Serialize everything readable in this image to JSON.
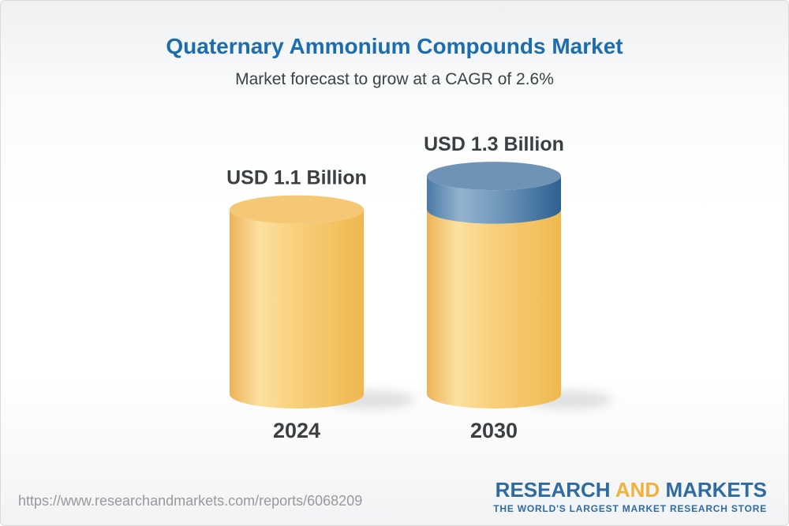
{
  "chart_data": {
    "type": "bar",
    "variant": "3d-cylinder",
    "title": "Quaternary Ammonium Compounds Market",
    "subtitle": "Market forecast to grow at a CAGR of 2.6%",
    "cagr": "2.6%",
    "unit": "USD Billion",
    "categories": [
      "2024",
      "2030"
    ],
    "values": [
      1.1,
      1.3
    ],
    "value_labels": [
      "USD 1.1 Billion",
      "USD 1.3 Billion"
    ],
    "legend": "none",
    "axes": "none",
    "bars": [
      {
        "category": "2024",
        "label": "USD 1.1 Billion",
        "segments": [
          {
            "color": "gold",
            "value": 1.1
          }
        ]
      },
      {
        "category": "2030",
        "label": "USD 1.3 Billion",
        "segments": [
          {
            "color": "gold",
            "value": 1.1
          },
          {
            "color": "blue",
            "value": 0.2
          }
        ]
      }
    ],
    "colors": {
      "gold_side": [
        "#eeb257",
        "#fce1a0",
        "#f8cf7c",
        "#efb84e"
      ],
      "gold_top": "#f5c876",
      "blue_side": [
        "#497aa8",
        "#94b3ce",
        "#6f97bb",
        "#2e6092"
      ],
      "blue_top": "#6e93b7",
      "label": "#3b3f42",
      "shadow": "#c9c9c9"
    }
  },
  "footer": {
    "url": "https://www.researchandmarkets.com/reports/6068209",
    "logo": {
      "part1": "RESEARCH",
      "part2": "AND",
      "part3": "MARKETS",
      "tagline": "THE WORLD'S LARGEST MARKET RESEARCH STORE",
      "blue": "#2e6ba3",
      "gold": "#f0b23d"
    }
  }
}
